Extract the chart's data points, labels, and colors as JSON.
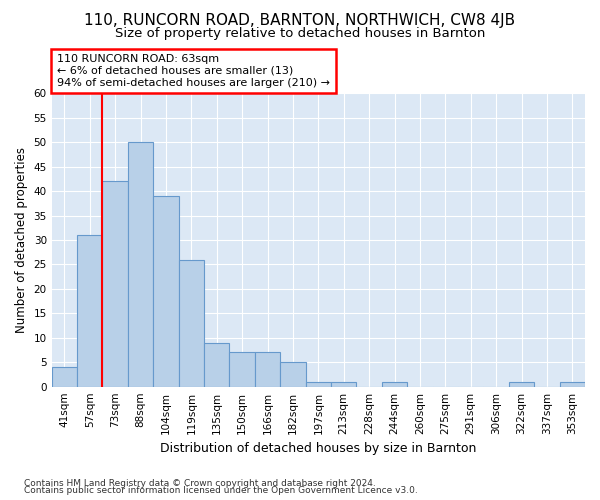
{
  "title1": "110, RUNCORN ROAD, BARNTON, NORTHWICH, CW8 4JB",
  "title2": "Size of property relative to detached houses in Barnton",
  "xlabel": "Distribution of detached houses by size in Barnton",
  "ylabel": "Number of detached properties",
  "footnote1": "Contains HM Land Registry data © Crown copyright and database right 2024.",
  "footnote2": "Contains public sector information licensed under the Open Government Licence v3.0.",
  "categories": [
    "41sqm",
    "57sqm",
    "73sqm",
    "88sqm",
    "104sqm",
    "119sqm",
    "135sqm",
    "150sqm",
    "166sqm",
    "182sqm",
    "197sqm",
    "213sqm",
    "228sqm",
    "244sqm",
    "260sqm",
    "275sqm",
    "291sqm",
    "306sqm",
    "322sqm",
    "337sqm",
    "353sqm"
  ],
  "values": [
    4,
    31,
    42,
    50,
    39,
    26,
    9,
    7,
    7,
    5,
    1,
    1,
    0,
    1,
    0,
    0,
    0,
    0,
    1,
    0,
    1
  ],
  "bar_color": "#b8d0e8",
  "bar_edge_color": "#6699cc",
  "red_line_index": 1,
  "annotation_text": "110 RUNCORN ROAD: 63sqm\n← 6% of detached houses are smaller (13)\n94% of semi-detached houses are larger (210) →",
  "annotation_box_color": "white",
  "annotation_box_edge_color": "red",
  "ylim": [
    0,
    60
  ],
  "yticks": [
    0,
    5,
    10,
    15,
    20,
    25,
    30,
    35,
    40,
    45,
    50,
    55,
    60
  ],
  "background_color": "#dce8f5",
  "grid_color": "white",
  "title1_fontsize": 11,
  "title2_fontsize": 9.5,
  "xlabel_fontsize": 9,
  "ylabel_fontsize": 8.5,
  "tick_fontsize": 7.5,
  "annotation_fontsize": 8,
  "footnote_fontsize": 6.5
}
